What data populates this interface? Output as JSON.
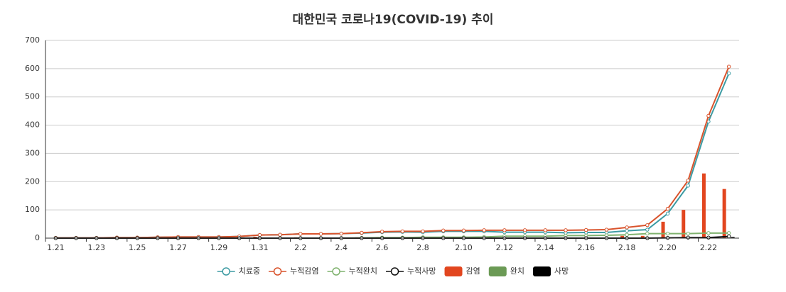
{
  "chart_data": {
    "type": "combo",
    "title": "대한민국 코로나19(COVID-19) 추이",
    "categories": [
      "1.21",
      null,
      "1.23",
      null,
      "1.25",
      null,
      "1.27",
      null,
      "1.29",
      null,
      "1.31",
      null,
      "2.2",
      null,
      "2.4",
      null,
      "2.6",
      null,
      "2.8",
      null,
      "2.10",
      null,
      "2.12",
      null,
      "2.14",
      null,
      "2.16",
      null,
      "2.18",
      null,
      "2.20",
      null,
      "2.22",
      null
    ],
    "ylim": [
      0,
      700
    ],
    "yticks": [
      0,
      100,
      200,
      300,
      400,
      500,
      600,
      700
    ],
    "grid": true,
    "series": [
      {
        "name": "치료중",
        "type": "line",
        "color": "#3d9ba3",
        "values": [
          1,
          1,
          1,
          2,
          2,
          3,
          4,
          4,
          4,
          6,
          11,
          12,
          15,
          15,
          16,
          18,
          21,
          22,
          21,
          24,
          24,
          24,
          21,
          21,
          21,
          19,
          20,
          20,
          26,
          30,
          87,
          186,
          413,
          583
        ]
      },
      {
        "name": "누적감염",
        "type": "line",
        "color": "#d9532c",
        "values": [
          1,
          1,
          1,
          2,
          2,
          3,
          4,
          4,
          4,
          6,
          11,
          12,
          15,
          15,
          16,
          19,
          23,
          24,
          24,
          27,
          27,
          28,
          28,
          28,
          28,
          28,
          29,
          30,
          38,
          46,
          104,
          204,
          433,
          607
        ]
      },
      {
        "name": "누적완치",
        "type": "line",
        "color": "#7fb26e",
        "values": [
          0,
          0,
          0,
          0,
          0,
          0,
          0,
          0,
          0,
          0,
          0,
          0,
          0,
          0,
          0,
          1,
          2,
          2,
          3,
          3,
          3,
          4,
          7,
          7,
          7,
          9,
          9,
          10,
          12,
          16,
          16,
          16,
          18,
          18
        ]
      },
      {
        "name": "누적사망",
        "type": "line",
        "color": "#111111",
        "values": [
          0,
          0,
          0,
          0,
          0,
          0,
          0,
          0,
          0,
          0,
          0,
          0,
          0,
          0,
          0,
          0,
          0,
          0,
          0,
          0,
          0,
          0,
          0,
          0,
          0,
          0,
          0,
          0,
          0,
          0,
          1,
          2,
          2,
          6
        ]
      },
      {
        "name": "감염",
        "type": "bar",
        "color": "#e2461f",
        "values": [
          1,
          0,
          0,
          1,
          0,
          1,
          1,
          0,
          0,
          2,
          5,
          1,
          3,
          0,
          1,
          3,
          4,
          1,
          0,
          3,
          0,
          1,
          0,
          0,
          0,
          0,
          1,
          1,
          8,
          8,
          58,
          100,
          229,
          174
        ]
      },
      {
        "name": "완치",
        "type": "bar",
        "color": "#6b9a55",
        "values": [
          0,
          0,
          0,
          0,
          0,
          0,
          0,
          0,
          0,
          0,
          0,
          0,
          0,
          0,
          0,
          1,
          1,
          0,
          1,
          0,
          0,
          1,
          3,
          0,
          0,
          2,
          0,
          1,
          2,
          4,
          0,
          0,
          2,
          0
        ]
      },
      {
        "name": "사망",
        "type": "bar",
        "color": "#000000",
        "values": [
          0,
          0,
          0,
          0,
          0,
          0,
          0,
          0,
          0,
          0,
          0,
          0,
          0,
          0,
          0,
          0,
          0,
          0,
          0,
          0,
          0,
          0,
          0,
          0,
          0,
          0,
          0,
          0,
          0,
          0,
          1,
          1,
          0,
          4
        ]
      }
    ]
  }
}
